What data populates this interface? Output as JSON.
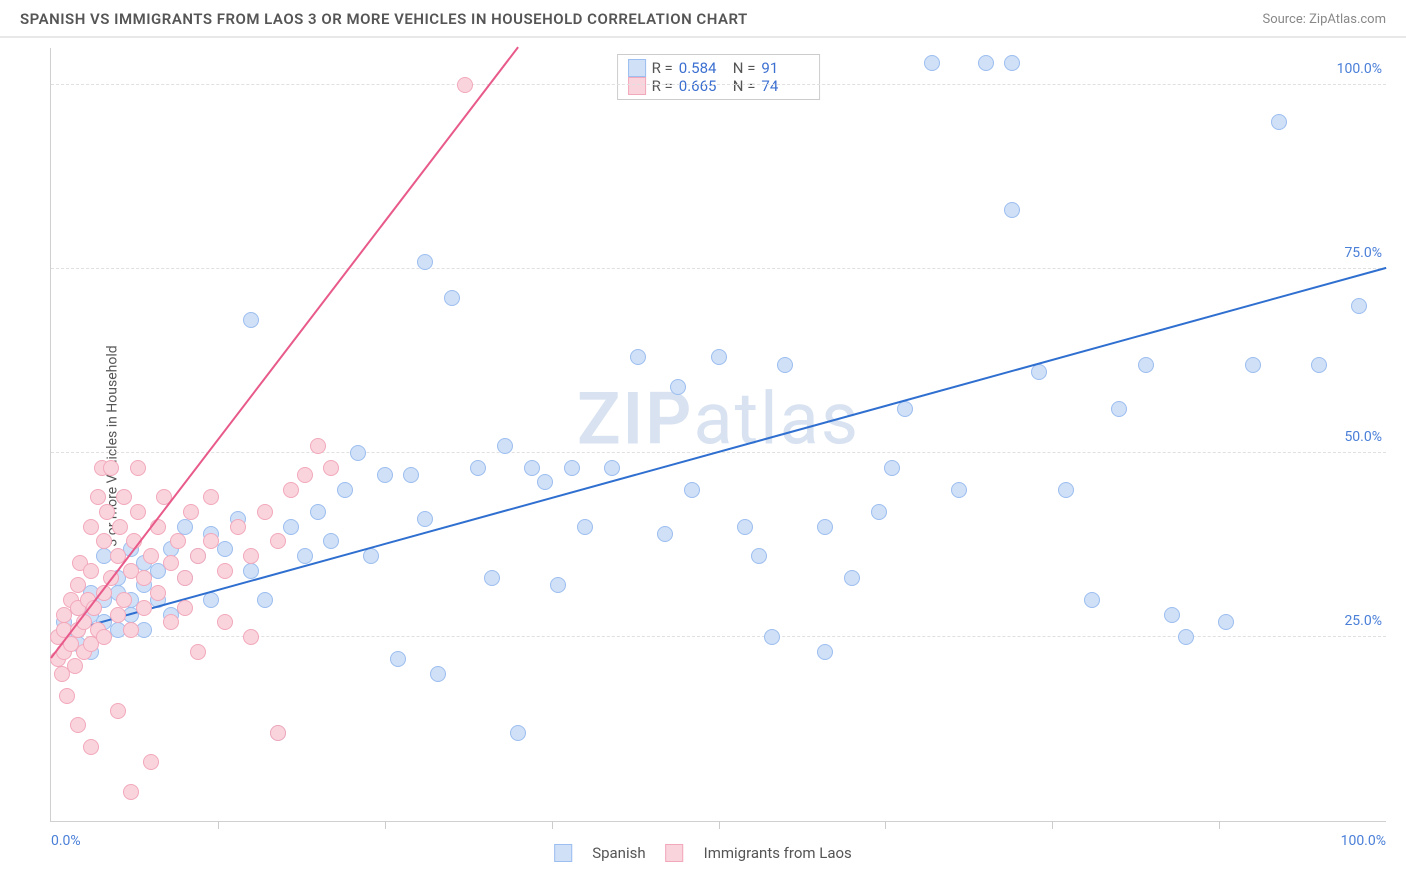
{
  "header": {
    "title": "SPANISH VS IMMIGRANTS FROM LAOS 3 OR MORE VEHICLES IN HOUSEHOLD CORRELATION CHART",
    "source": "Source: ZipAtlas.com"
  },
  "chart": {
    "type": "scatter",
    "ylabel": "3 or more Vehicles in Household",
    "xlim": [
      0,
      100
    ],
    "ylim": [
      0,
      105
    ],
    "x_tick_labels": {
      "left": "0.0%",
      "right": "100.0%"
    },
    "y_ticks": [
      {
        "v": 25,
        "label": "25.0%"
      },
      {
        "v": 50,
        "label": "50.0%"
      },
      {
        "v": 75,
        "label": "75.0%"
      },
      {
        "v": 100,
        "label": "100.0%"
      }
    ],
    "x_minor_ticks": [
      12.5,
      25,
      37.5,
      50,
      62.5,
      75,
      87.5
    ],
    "background_color": "#ffffff",
    "grid_color": "#e0e0e0",
    "marker_radius": 8,
    "marker_stroke": 1.5,
    "watermark": "ZIPatlas",
    "series": [
      {
        "name": "Spanish",
        "fill": "#cfe0f7",
        "stroke": "#9cbef0",
        "line_color": "#2f6fd0",
        "R": "0.584",
        "N": "91",
        "trend": {
          "x1": 0,
          "y1": 25,
          "x2": 100,
          "y2": 75
        },
        "points": [
          [
            1,
            25
          ],
          [
            1,
            27
          ],
          [
            2,
            24
          ],
          [
            2,
            29
          ],
          [
            2,
            26
          ],
          [
            3,
            31
          ],
          [
            3,
            28
          ],
          [
            3,
            23
          ],
          [
            4,
            27
          ],
          [
            4,
            30
          ],
          [
            4,
            36
          ],
          [
            5,
            31
          ],
          [
            5,
            26
          ],
          [
            5,
            33
          ],
          [
            6,
            30
          ],
          [
            6,
            37
          ],
          [
            6,
            28
          ],
          [
            7,
            32
          ],
          [
            7,
            35
          ],
          [
            7,
            26
          ],
          [
            8,
            34
          ],
          [
            8,
            30
          ],
          [
            9,
            37
          ],
          [
            9,
            28
          ],
          [
            10,
            33
          ],
          [
            10,
            40
          ],
          [
            11,
            36
          ],
          [
            12,
            30
          ],
          [
            12,
            39
          ],
          [
            13,
            37
          ],
          [
            14,
            41
          ],
          [
            15,
            34
          ],
          [
            15,
            68
          ],
          [
            16,
            30
          ],
          [
            17,
            12
          ],
          [
            18,
            40
          ],
          [
            19,
            36
          ],
          [
            20,
            42
          ],
          [
            21,
            38
          ],
          [
            22,
            45
          ],
          [
            23,
            50
          ],
          [
            24,
            36
          ],
          [
            25,
            47
          ],
          [
            26,
            22
          ],
          [
            27,
            47
          ],
          [
            28,
            41
          ],
          [
            28,
            76
          ],
          [
            29,
            20
          ],
          [
            30,
            71
          ],
          [
            32,
            48
          ],
          [
            33,
            33
          ],
          [
            34,
            51
          ],
          [
            35,
            12
          ],
          [
            36,
            48
          ],
          [
            37,
            46
          ],
          [
            38,
            32
          ],
          [
            39,
            48
          ],
          [
            40,
            40
          ],
          [
            42,
            48
          ],
          [
            44,
            63
          ],
          [
            46,
            39
          ],
          [
            48,
            45
          ],
          [
            50,
            63
          ],
          [
            52,
            40
          ],
          [
            54,
            25
          ],
          [
            55,
            62
          ],
          [
            58,
            40
          ],
          [
            60,
            33
          ],
          [
            62,
            42
          ],
          [
            64,
            56
          ],
          [
            66,
            103
          ],
          [
            68,
            45
          ],
          [
            70,
            103
          ],
          [
            72,
            103
          ],
          [
            72,
            83
          ],
          [
            74,
            61
          ],
          [
            76,
            45
          ],
          [
            78,
            30
          ],
          [
            80,
            56
          ],
          [
            82,
            62
          ],
          [
            84,
            28
          ],
          [
            88,
            27
          ],
          [
            90,
            62
          ],
          [
            92,
            95
          ],
          [
            95,
            62
          ],
          [
            98,
            70
          ],
          [
            85,
            25
          ],
          [
            63,
            48
          ],
          [
            47,
            59
          ],
          [
            53,
            36
          ],
          [
            58,
            23
          ]
        ]
      },
      {
        "name": "Immigrants from Laos",
        "fill": "#f9d4dd",
        "stroke": "#f2a8bb",
        "line_color": "#e85a8a",
        "R": "0.665",
        "N": "74",
        "trend": {
          "x1": 0,
          "y1": 22,
          "x2": 35,
          "y2": 105
        },
        "points": [
          [
            0.5,
            22
          ],
          [
            0.5,
            25
          ],
          [
            0.8,
            20
          ],
          [
            1,
            23
          ],
          [
            1,
            26
          ],
          [
            1,
            28
          ],
          [
            1.2,
            17
          ],
          [
            1.5,
            24
          ],
          [
            1.5,
            30
          ],
          [
            1.8,
            21
          ],
          [
            2,
            13
          ],
          [
            2,
            26
          ],
          [
            2,
            29
          ],
          [
            2,
            32
          ],
          [
            2.2,
            35
          ],
          [
            2.5,
            27
          ],
          [
            2.5,
            23
          ],
          [
            2.8,
            30
          ],
          [
            3,
            24
          ],
          [
            3,
            34
          ],
          [
            3,
            40
          ],
          [
            3.2,
            29
          ],
          [
            3.5,
            44
          ],
          [
            3.5,
            26
          ],
          [
            3.8,
            48
          ],
          [
            4,
            31
          ],
          [
            4,
            25
          ],
          [
            4,
            38
          ],
          [
            4.2,
            42
          ],
          [
            4.5,
            33
          ],
          [
            4.5,
            48
          ],
          [
            5,
            28
          ],
          [
            5,
            36
          ],
          [
            5,
            15
          ],
          [
            5.2,
            40
          ],
          [
            5.5,
            30
          ],
          [
            5.5,
            44
          ],
          [
            6,
            34
          ],
          [
            6,
            26
          ],
          [
            6.2,
            38
          ],
          [
            6.5,
            42
          ],
          [
            6.5,
            48
          ],
          [
            7,
            33
          ],
          [
            7,
            29
          ],
          [
            7.5,
            36
          ],
          [
            7.5,
            8
          ],
          [
            8,
            40
          ],
          [
            8,
            31
          ],
          [
            8.5,
            44
          ],
          [
            9,
            35
          ],
          [
            9,
            27
          ],
          [
            9.5,
            38
          ],
          [
            10,
            33
          ],
          [
            10,
            29
          ],
          [
            10.5,
            42
          ],
          [
            11,
            36
          ],
          [
            11,
            23
          ],
          [
            12,
            38
          ],
          [
            12,
            44
          ],
          [
            13,
            34
          ],
          [
            13,
            27
          ],
          [
            14,
            40
          ],
          [
            15,
            36
          ],
          [
            15,
            25
          ],
          [
            16,
            42
          ],
          [
            17,
            38
          ],
          [
            18,
            45
          ],
          [
            19,
            47
          ],
          [
            20,
            51
          ],
          [
            21,
            48
          ],
          [
            17,
            12
          ],
          [
            6,
            4
          ],
          [
            3,
            10
          ],
          [
            31,
            100
          ]
        ]
      }
    ],
    "legend": {
      "items": [
        {
          "label": "Spanish",
          "fill": "#cfe0f7",
          "stroke": "#9cbef0"
        },
        {
          "label": "Immigrants from Laos",
          "fill": "#f9d4dd",
          "stroke": "#f2a8bb"
        }
      ]
    }
  }
}
